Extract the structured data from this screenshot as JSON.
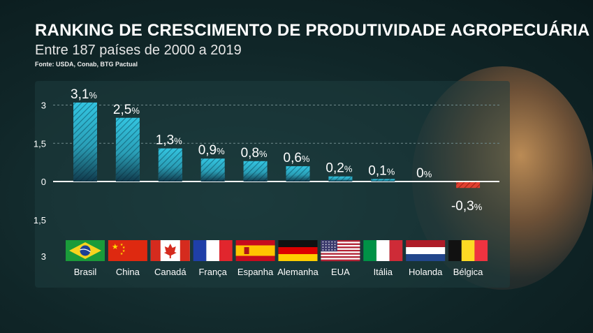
{
  "title": "RANKING DE CRESCIMENTO DE PRODUTIVIDADE AGROPECUÁRIA",
  "subtitle": "Entre 187 países de 2000 a 2019",
  "source": "Fonte: USDA, Conab, BTG Pactual",
  "colors": {
    "bar_positive": "#2fb8d6",
    "bar_negative": "#d83a2a",
    "background": "#102628"
  },
  "chart_data": {
    "type": "bar",
    "title": "RANKING DE CRESCIMENTO DE PRODUTIVIDADE AGROPECUÁRIA",
    "subtitle": "Entre 187 países de 2000 a 2019",
    "unit": "%",
    "categories": [
      "Brasil",
      "China",
      "Canadá",
      "França",
      "Espanha",
      "Alemanha",
      "EUA",
      "Itália",
      "Holanda",
      "Bélgica"
    ],
    "values": [
      3.1,
      2.5,
      1.3,
      0.9,
      0.8,
      0.6,
      0.2,
      0.1,
      0,
      -0.3
    ],
    "value_labels": [
      "3,1",
      "2,5",
      "1,3",
      "0,9",
      "0,8",
      "0,6",
      "0,2",
      "0,1",
      "0",
      "-0,3"
    ],
    "y_tick_labels": [
      "3",
      "1,5",
      "0",
      "1,5",
      "3"
    ],
    "y_ticks": [
      3,
      1.5,
      0,
      -1.5,
      -3
    ],
    "ylim": [
      -3,
      3
    ],
    "grid": true,
    "flag_icons": [
      "flag-brazil",
      "flag-china",
      "flag-canada",
      "flag-france",
      "flag-spain",
      "flag-germany",
      "flag-usa",
      "flag-italy",
      "flag-netherlands",
      "flag-belgium"
    ]
  }
}
